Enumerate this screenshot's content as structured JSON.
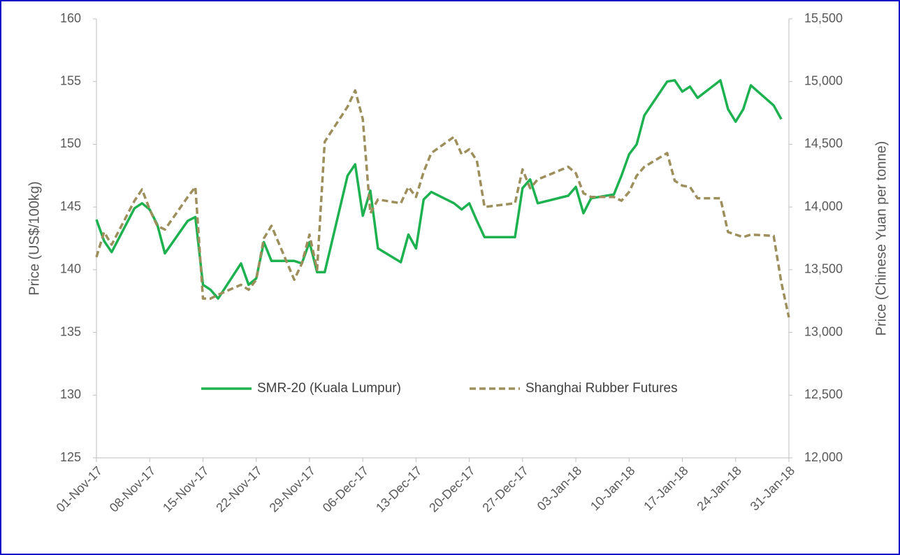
{
  "chart_data": {
    "type": "line",
    "x": [
      "2017-11-01",
      "2017-11-02",
      "2017-11-03",
      "2017-11-06",
      "2017-11-07",
      "2017-11-08",
      "2017-11-09",
      "2017-11-10",
      "2017-11-13",
      "2017-11-14",
      "2017-11-15",
      "2017-11-16",
      "2017-11-17",
      "2017-11-20",
      "2017-11-21",
      "2017-11-22",
      "2017-11-23",
      "2017-11-24",
      "2017-11-27",
      "2017-11-28",
      "2017-11-29",
      "2017-11-30",
      "2017-12-01",
      "2017-12-04",
      "2017-12-05",
      "2017-12-06",
      "2017-12-07",
      "2017-12-08",
      "2017-12-11",
      "2017-12-12",
      "2017-12-13",
      "2017-12-14",
      "2017-12-15",
      "2017-12-18",
      "2017-12-19",
      "2017-12-20",
      "2017-12-21",
      "2017-12-22",
      "2017-12-26",
      "2017-12-27",
      "2017-12-28",
      "2017-12-29",
      "2018-01-02",
      "2018-01-03",
      "2018-01-04",
      "2018-01-05",
      "2018-01-08",
      "2018-01-09",
      "2018-01-10",
      "2018-01-11",
      "2018-01-12",
      "2018-01-15",
      "2018-01-16",
      "2018-01-17",
      "2018-01-18",
      "2018-01-19",
      "2018-01-22",
      "2018-01-23",
      "2018-01-24",
      "2018-01-25",
      "2018-01-26",
      "2018-01-29",
      "2018-01-30",
      "2018-01-31"
    ],
    "series": [
      {
        "name": "SMR-20 (Kuala Lumpur)",
        "color": "#1eb14f",
        "dashed": false,
        "values": [
          144.0,
          142.3,
          141.4,
          144.9,
          145.3,
          144.8,
          143.6,
          141.3,
          143.9,
          144.2,
          138.8,
          138.4,
          137.7,
          140.5,
          138.8,
          139.3,
          142.2,
          140.7,
          140.7,
          140.5,
          142.2,
          139.8,
          139.8,
          147.5,
          148.4,
          144.3,
          146.3,
          141.7,
          140.6,
          142.8,
          141.7,
          145.6,
          146.2,
          145.3,
          144.8,
          145.3,
          143.9,
          142.6,
          142.6,
          146.5,
          147.2,
          145.3,
          145.9,
          146.6,
          144.5,
          145.7,
          146.0,
          147.5,
          149.2,
          150.0,
          152.3,
          155.0,
          155.1,
          154.2,
          154.6,
          153.7,
          155.1,
          152.8,
          151.8,
          152.8,
          154.7,
          153.1,
          152.0,
          null
        ]
      },
      {
        "name": "Shanghai Rubber Futures",
        "color": "#9d8f5b",
        "dashed": true,
        "axis": "y2",
        "values": [
          13600,
          13800,
          13700,
          14050,
          14140,
          13980,
          13850,
          13820,
          14080,
          14160,
          13270,
          13270,
          13300,
          13380,
          13340,
          13420,
          13750,
          13850,
          13420,
          13550,
          13780,
          13500,
          14520,
          14800,
          14930,
          14700,
          13950,
          14060,
          14030,
          14160,
          14080,
          14280,
          14430,
          14560,
          14420,
          14460,
          14370,
          14000,
          14030,
          14300,
          14150,
          14220,
          14320,
          14270,
          14110,
          14080,
          14080,
          14050,
          14120,
          14250,
          14320,
          14430,
          14210,
          14170,
          14160,
          14070,
          14070,
          13800,
          13780,
          13760,
          13780,
          13770,
          13400,
          13120
        ]
      }
    ],
    "y_label": "Price (US$/100kg)",
    "y2_label": "Price (Chinese Yuan per tonne)",
    "xlim": [
      "2017-11-01",
      "2018-01-31"
    ],
    "xticks": [
      {
        "value": "2017-11-01",
        "label": "01-Nov-17"
      },
      {
        "value": "2017-11-08",
        "label": "08-Nov-17"
      },
      {
        "value": "2017-11-15",
        "label": "15-Nov-17"
      },
      {
        "value": "2017-11-22",
        "label": "22-Nov-17"
      },
      {
        "value": "2017-11-29",
        "label": "29-Nov-17"
      },
      {
        "value": "2017-12-06",
        "label": "06-Dec-17"
      },
      {
        "value": "2017-12-13",
        "label": "13-Dec-17"
      },
      {
        "value": "2017-12-20",
        "label": "20-Dec-17"
      },
      {
        "value": "2017-12-27",
        "label": "27-Dec-17"
      },
      {
        "value": "2018-01-03",
        "label": "03-Jan-18"
      },
      {
        "value": "2018-01-10",
        "label": "10-Jan-18"
      },
      {
        "value": "2018-01-17",
        "label": "17-Jan-18"
      },
      {
        "value": "2018-01-24",
        "label": "24-Jan-18"
      },
      {
        "value": "2018-01-31",
        "label": "31-Jan-18"
      }
    ],
    "ylim": [
      125,
      160
    ],
    "yticks": [
      125,
      130,
      135,
      140,
      145,
      150,
      155,
      160
    ],
    "y2lim": [
      12000,
      15500
    ],
    "y2ticks": [
      {
        "value": 12000,
        "label": "12,000"
      },
      {
        "value": 12500,
        "label": "12,500"
      },
      {
        "value": 13000,
        "label": "13,000"
      },
      {
        "value": 13500,
        "label": "13,500"
      },
      {
        "value": 14000,
        "label": "14,000"
      },
      {
        "value": 14500,
        "label": "14,500"
      },
      {
        "value": 15000,
        "label": "15,000"
      },
      {
        "value": 15500,
        "label": "15,500"
      }
    ],
    "grid": false,
    "legend": "bottom-center"
  }
}
